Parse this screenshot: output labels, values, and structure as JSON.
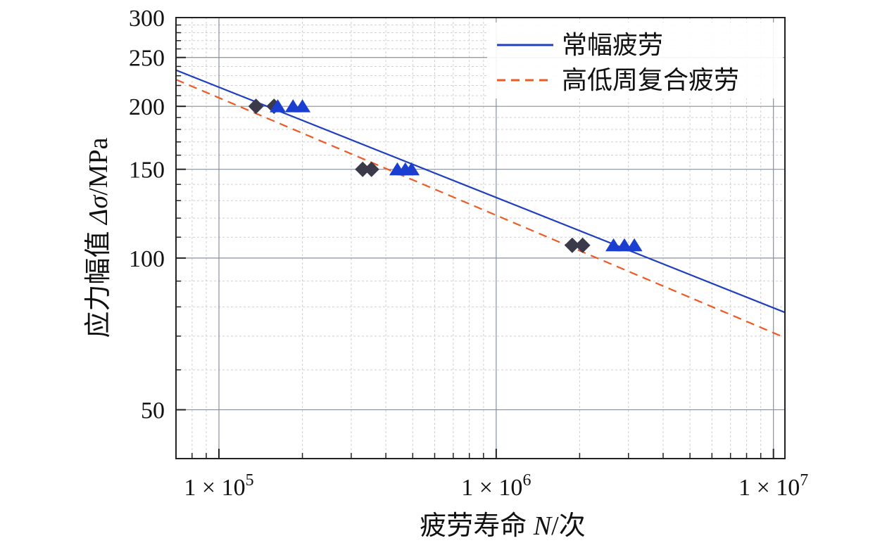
{
  "chart_data": {
    "type": "scatter",
    "x_scale": "log",
    "y_scale": "log",
    "xlim": [
      70000,
      11000000
    ],
    "ylim": [
      40,
      300
    ],
    "x_ticks": [
      {
        "value": 100000,
        "label_base": "1 × 10",
        "label_exp": "5"
      },
      {
        "value": 1000000,
        "label_base": "1 × 10",
        "label_exp": "6"
      },
      {
        "value": 10000000,
        "label_base": "1 × 10",
        "label_exp": "7"
      }
    ],
    "y_ticks": [
      {
        "value": 50,
        "label": "50"
      },
      {
        "value": 100,
        "label": "100"
      },
      {
        "value": 150,
        "label": "150"
      },
      {
        "value": 200,
        "label": "200"
      },
      {
        "value": 250,
        "label": "250"
      },
      {
        "value": 300,
        "label": "300"
      }
    ],
    "xlabel": {
      "prefix": "疲劳寿命 ",
      "var": "N",
      "suffix": "/次"
    },
    "ylabel": {
      "prefix": "应力幅值 ",
      "var": "Δσ",
      "suffix": "/MPa"
    },
    "grid": true,
    "legend_position": "top-right",
    "legend": [
      {
        "label": "常幅疲劳",
        "style": "solid",
        "color": "#1f3fbf"
      },
      {
        "label": "高低周复合疲劳",
        "style": "dashed",
        "color": "#ee5a24"
      }
    ],
    "fit_lines": [
      {
        "name": "常幅疲劳",
        "style": "solid",
        "color": "#1f3fbf",
        "points": [
          [
            70000,
            236
          ],
          [
            11000000,
            78
          ]
        ]
      },
      {
        "name": "高低周复合疲劳",
        "style": "dashed",
        "color": "#ee5a24",
        "points": [
          [
            70000,
            226
          ],
          [
            11000000,
            69.5
          ]
        ]
      }
    ],
    "scatter": [
      {
        "marker": "diamond",
        "color": "#3a3a4a",
        "points": [
          [
            136000,
            200
          ],
          [
            158000,
            200
          ],
          [
            330000,
            150
          ],
          [
            355000,
            150
          ],
          [
            1880000,
            106
          ],
          [
            2050000,
            106
          ]
        ]
      },
      {
        "marker": "triangle",
        "color": "#1a3fd0",
        "points": [
          [
            163000,
            200
          ],
          [
            185000,
            200
          ],
          [
            200000,
            200
          ],
          [
            440000,
            150
          ],
          [
            470000,
            150
          ],
          [
            495000,
            150
          ],
          [
            2650000,
            106
          ],
          [
            2900000,
            106
          ],
          [
            3150000,
            106
          ]
        ]
      }
    ]
  }
}
